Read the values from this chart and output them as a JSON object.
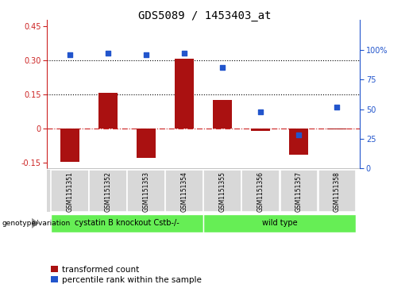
{
  "title": "GDS5089 / 1453403_at",
  "samples": [
    "GSM1151351",
    "GSM1151352",
    "GSM1151353",
    "GSM1151354",
    "GSM1151355",
    "GSM1151356",
    "GSM1151357",
    "GSM1151358"
  ],
  "transformed_count": [
    -0.145,
    0.155,
    -0.13,
    0.305,
    0.125,
    -0.01,
    -0.115,
    -0.005
  ],
  "percentile_rank": [
    96,
    97,
    96,
    97,
    85,
    48,
    28,
    52
  ],
  "groups": [
    {
      "label": "cystatin B knockout Cstb-/-",
      "indices": [
        0,
        3
      ]
    },
    {
      "label": "wild type",
      "indices": [
        4,
        7
      ]
    }
  ],
  "ylim_left": [
    -0.175,
    0.475
  ],
  "ylim_right": [
    0,
    125
  ],
  "yticks_left": [
    -0.15,
    0.0,
    0.15,
    0.3,
    0.45
  ],
  "yticks_right": [
    0,
    25,
    50,
    75,
    100
  ],
  "hlines": [
    0.0,
    0.15,
    0.3
  ],
  "hline_styles": [
    "dashdot",
    "dotted",
    "dotted"
  ],
  "hline_colors": [
    "#cc2222",
    "black",
    "black"
  ],
  "bar_color": "#aa1111",
  "dot_color": "#2255cc",
  "bar_width": 0.5,
  "title_fontsize": 10,
  "tick_fontsize": 7,
  "label_fontsize": 7,
  "legend_fontsize": 7.5,
  "left_axis_color": "#cc2222",
  "right_axis_color": "#2255cc",
  "bg_color": "#d8d8d8",
  "plot_bg": "#ffffff",
  "group_color": "#66ee55",
  "genotype_label": "genotype/variation",
  "legend_items": [
    "transformed count",
    "percentile rank within the sample"
  ]
}
